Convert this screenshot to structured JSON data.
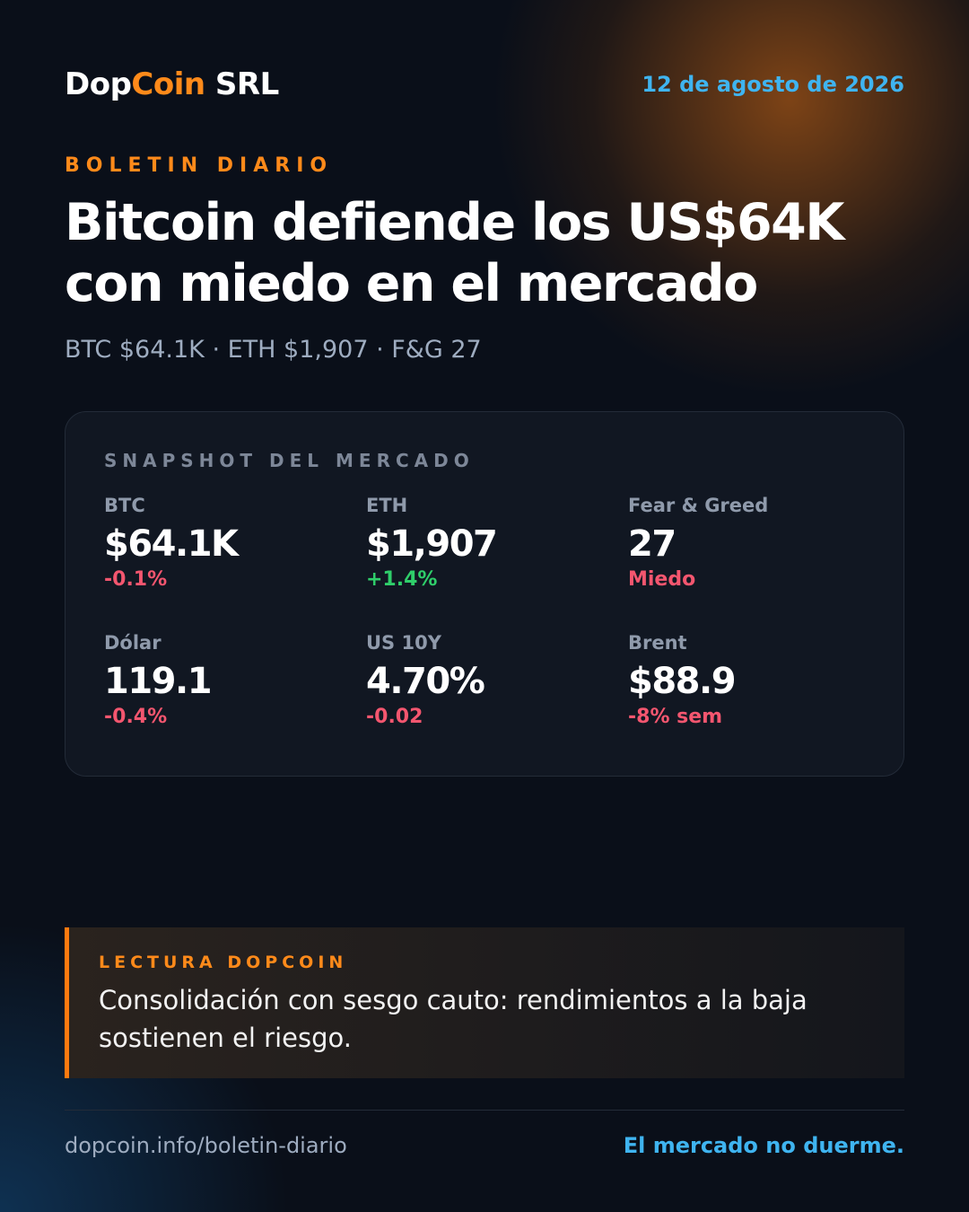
{
  "header": {
    "brand": [
      "Dop",
      "Coin",
      " SRL"
    ],
    "brand_colors": [
      "#ffffff",
      "#ff8a1a",
      "#ffffff"
    ],
    "date": "12 de agosto de 2026"
  },
  "kicker": "BOLETIN DIARIO",
  "title": "Bitcoin defiende los US$64K con miedo en el mercado",
  "subtitle": "BTC $64.1K · ETH $1,907 · F&G 27",
  "snapshot": {
    "label": "SNAPSHOT DEL MERCADO",
    "items": [
      {
        "label": "BTC",
        "value": "$64.1K",
        "change": "-0.1%",
        "color": "#f4566f"
      },
      {
        "label": "ETH",
        "value": "$1,907",
        "change": "+1.4%",
        "color": "#2fce6a"
      },
      {
        "label": "Fear & Greed",
        "value": "27",
        "change": "Miedo",
        "color": "#f4566f"
      },
      {
        "label": "Dólar",
        "value": "119.1",
        "change": "-0.4%",
        "color": "#f4566f"
      },
      {
        "label": "US 10Y",
        "value": "4.70%",
        "change": "-0.02",
        "color": "#f4566f"
      },
      {
        "label": "Brent",
        "value": "$88.9",
        "change": "-8% sem",
        "color": "#f4566f"
      }
    ]
  },
  "note": {
    "label": "LECTURA DOPCOIN",
    "text": "Consolidación con sesgo cauto: rendimientos a la baja sostienen el riesgo."
  },
  "footer": {
    "url": "dopcoin.info/boletin-diario",
    "tagline": "El mercado no duerme."
  }
}
